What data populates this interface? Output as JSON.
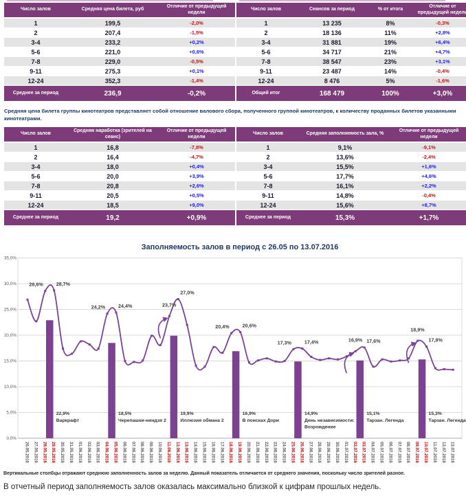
{
  "colors": {
    "table_header_bg": "#7D3B79",
    "row_stripe": "#E4E4E4",
    "negative": "#D90A0A",
    "positive": "#2121DC",
    "value_text": "#1A1A30",
    "note_text": "#17365D",
    "chart_title": "#1F3864",
    "line": "#7B4397",
    "bar": "#7D4191",
    "gridline": "#D8D8D8",
    "axis_label": "#595959",
    "weekend_label": "#C00000",
    "annotation": "#3F3F3F",
    "bar_label": "#333333"
  },
  "tables": [
    {
      "name": "ticket-price-table",
      "headers": [
        "Число залов",
        "Средняя цена билета, руб",
        "Отличие от предыдущей недели"
      ],
      "rows": [
        [
          "1",
          "199,5",
          "-2,0%"
        ],
        [
          "2",
          "207,4",
          "-1,5%"
        ],
        [
          "3-4",
          "233,2",
          "+0,2%"
        ],
        [
          "5-6",
          "221,0",
          "+0,6%"
        ],
        [
          "7-8",
          "229,0",
          "-0,5%"
        ],
        [
          "9-11",
          "275,3",
          "+0,1%"
        ],
        [
          "12-24",
          "352,3",
          "-1,4%"
        ]
      ],
      "total": [
        "Среднее за период",
        "236,9",
        "-0,2%"
      ]
    },
    {
      "name": "sessions-table",
      "headers": [
        "Число залов",
        "Сеансов за период",
        "% от итога",
        "Отличие от предыдущей недели"
      ],
      "rows": [
        [
          "1",
          "13 235",
          "8%",
          "-0,3%"
        ],
        [
          "2",
          "18 136",
          "11%",
          "+2,8%"
        ],
        [
          "3-4",
          "31 881",
          "19%",
          "+6,4%"
        ],
        [
          "5-6",
          "34 717",
          "21%",
          "+4,7%"
        ],
        [
          "7-8",
          "38 547",
          "23%",
          "+3,1%"
        ],
        [
          "9-11",
          "23 487",
          "14%",
          "-0,4%"
        ],
        [
          "12-24",
          "8 476",
          "5%",
          "-1,6%"
        ]
      ],
      "total": [
        "Общий итог",
        "168 479",
        "100%",
        "+3,0%"
      ]
    },
    {
      "name": "attendance-table",
      "headers": [
        "Число залов",
        "Средняя наработка (зрителей на сеанс)",
        "Отличие от предыдущей недели"
      ],
      "rows": [
        [
          "1",
          "16,8",
          "-7,8%"
        ],
        [
          "2",
          "16,4",
          "-4,7%"
        ],
        [
          "3-4",
          "18,0",
          "+0,4%"
        ],
        [
          "5-6",
          "20,0",
          "+3,9%"
        ],
        [
          "7-8",
          "20,8",
          "+2,6%"
        ],
        [
          "9-11",
          "20,5",
          "+0,5%"
        ],
        [
          "12-24",
          "18,5",
          "+9,0%"
        ]
      ],
      "total": [
        "Среднее за период",
        "19,2",
        "+0,9%"
      ]
    },
    {
      "name": "occupancy-table",
      "headers": [
        "Число залов",
        "Средняя заполняемость зала, %",
        "Отличие от предыдущей недели"
      ],
      "rows": [
        [
          "1",
          "9,1%",
          "-9,1%"
        ],
        [
          "2",
          "13,6%",
          "-2,4%"
        ],
        [
          "3-4",
          "15,5%",
          "+1,6%"
        ],
        [
          "5-6",
          "17,7%",
          "+4,6%"
        ],
        [
          "7-8",
          "16,1%",
          "+2,2%"
        ],
        [
          "9-11",
          "14,8%",
          "-0,4%"
        ],
        [
          "12-24",
          "15,6%",
          "+8,7%"
        ]
      ],
      "total": [
        "Среднее за период",
        "15,3%",
        "+1,7%"
      ]
    }
  ],
  "note_between": "Средняя цена билета группы кинотеатров представляет собой отношение валового сбора, полученного группой кинотеатров, к количеству проданных билетов указанными кинотеатрами.",
  "chart_data": {
    "type": "line",
    "title": "Заполняемость залов в период с 26.05 по 13.07.2016",
    "ylim": [
      0,
      35
    ],
    "yticks": [
      "35,0%",
      "30,0%",
      "25,0%",
      "20,0%",
      "15,0%",
      "10,0%",
      "5,0%",
      "0,0%"
    ],
    "grid": "horizontal",
    "legend": "none",
    "x": [
      "26.05.2016",
      "27.05.2016",
      "28.05.2016",
      "29.05.2016",
      "30.05.2016",
      "31.05.2016",
      "01.06.2016",
      "02.06.2016",
      "03.06.2016",
      "04.06.2016",
      "05.06.2016",
      "06.06.2016",
      "07.06.2016",
      "08.06.2016",
      "09.06.2016",
      "10.06.2016",
      "11.06.2016",
      "12.06.2016",
      "13.06.2016",
      "14.06.2016",
      "15.06.2016",
      "16.06.2016",
      "17.06.2016",
      "18.06.2016",
      "19.06.2016",
      "20.06.2016",
      "21.06.2016",
      "22.06.2016",
      "23.06.2016",
      "24.06.2016",
      "25.06.2016",
      "26.06.2016",
      "27.06.2016",
      "28.06.2016",
      "29.06.2016",
      "30.06.2016",
      "01.07.2016",
      "02.07.2016",
      "03.07.2016",
      "04.07.2016",
      "05.07.2016",
      "06.07.2016",
      "07.07.2016",
      "08.07.2016",
      "09.07.2016",
      "10.07.2016",
      "11.07.2016",
      "12.07.2016",
      "13.07.2016"
    ],
    "weekend_dates_red": [
      "28.05.2016",
      "29.05.2016",
      "04.06.2016",
      "05.06.2016",
      "11.06.2016",
      "12.06.2016",
      "13.06.2016",
      "18.06.2016",
      "19.06.2016",
      "25.06.2016",
      "26.06.2016",
      "02.07.2016",
      "03.07.2016",
      "09.07.2016",
      "10.07.2016"
    ],
    "series": [
      {
        "name": "Заполняемость залов за день, %",
        "values": [
          26.9,
          22.7,
          28.6,
          28.7,
          17.4,
          16.4,
          18.8,
          18.2,
          17.4,
          24.2,
          24.4,
          15.0,
          14.8,
          15.1,
          19.9,
          18.1,
          23.7,
          27.0,
          22.0,
          14.1,
          13.9,
          17.7,
          16.6,
          20.4,
          20.6,
          14.7,
          15.1,
          15.5,
          14.9,
          15.0,
          17.3,
          17.4,
          15.8,
          15.2,
          15.5,
          15.3,
          15.9,
          16.9,
          17.6,
          13.9,
          15.3,
          14.9,
          15.1,
          15.5,
          18.9,
          17.8,
          13.6,
          13.4,
          13.3
        ]
      }
    ],
    "weekly_bars": [
      {
        "label": "22,9%",
        "value": 22.9,
        "movie": "Варкрафт",
        "saturday": "28.05.2016"
      },
      {
        "label": "18,5%",
        "value": 18.5,
        "movie": "Черепашки-ниндзя 2",
        "saturday": "04.06.2016"
      },
      {
        "label": "19,9%",
        "value": 19.9,
        "movie": "Иллюзия обмана 2",
        "saturday": "11.06.2016"
      },
      {
        "label": "16,9%",
        "value": 16.9,
        "movie": "В поисках Дори",
        "saturday": "18.06.2016"
      },
      {
        "label": "14,9%",
        "value": 14.9,
        "movie": "День независимости:\nВозрождение",
        "saturday": "25.06.2016"
      },
      {
        "label": "15,1%",
        "value": 15.1,
        "movie": "Тарзан. Легенда",
        "saturday": "02.07.2016"
      },
      {
        "label": "15,3%",
        "value": 15.3,
        "movie": "Тарзан. Легенда",
        "saturday": "09.07.2016"
      }
    ],
    "annotations": [
      {
        "text": "28,6%",
        "date": "28.05.2016",
        "side": "left",
        "arrow": false
      },
      {
        "text": "28,7%",
        "date": "29.05.2016",
        "side": "right",
        "arrow": false
      },
      {
        "text": "24,2%",
        "date": "04.06.2016",
        "side": "left",
        "arrow": false
      },
      {
        "text": "24,4%",
        "date": "05.06.2016",
        "side": "right",
        "arrow": false
      },
      {
        "text": "23,7%",
        "date": "11.06.2016",
        "side": "left",
        "arrow": true
      },
      {
        "text": "27,0%",
        "date": "12.06.2016",
        "side": "right",
        "arrow": false
      },
      {
        "text": "20,4%",
        "date": "18.06.2016",
        "side": "left",
        "arrow": false
      },
      {
        "text": "20,6%",
        "date": "19.06.2016",
        "side": "right",
        "arrow": false
      },
      {
        "text": "17,3%",
        "date": "25.06.2016",
        "side": "left",
        "arrow": false
      },
      {
        "text": "17,4%",
        "date": "26.06.2016",
        "side": "right",
        "arrow": false
      },
      {
        "text": "16,9%",
        "date": "02.07.2016",
        "side": "left",
        "arrow": true
      },
      {
        "text": "17,6%",
        "date": "03.07.2016",
        "side": "right",
        "arrow": false
      },
      {
        "text": "18,9%",
        "date": "09.07.2016",
        "side": "left",
        "arrow": true
      },
      {
        "text": "17,8%",
        "date": "10.07.2016",
        "side": "right",
        "arrow": false
      }
    ]
  },
  "footnotes": {
    "small": "Вертикальные столбцы отражают среднюю заполненность залов за неделю. Данный показатель отличается от среднего значения, поскольку число зрителей разное.",
    "large": "В отчетный период заполняемость залов оказалась максимально близкой к цифрам прошлых недель."
  }
}
